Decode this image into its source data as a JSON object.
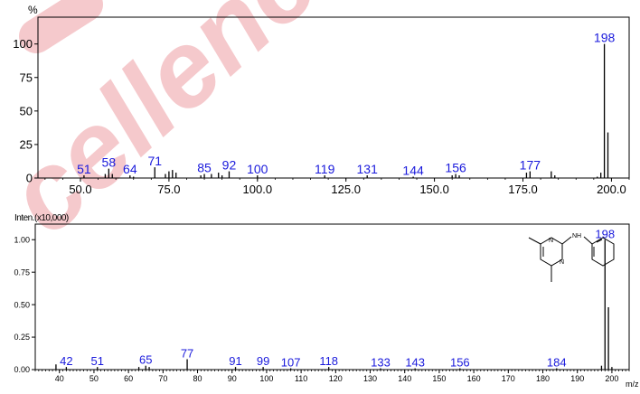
{
  "colors": {
    "axis": "#000000",
    "peak_label": "#1a1adc",
    "watermark": "#f5c9cc",
    "bar": "#000000"
  },
  "watermark_text": "cellence",
  "chart_data": [
    {
      "type": "bar",
      "title": "",
      "ylabel": "%",
      "xlabel": "",
      "xlim": [
        38,
        205
      ],
      "ylim": [
        0,
        120
      ],
      "xticks": [
        50,
        75,
        100,
        125,
        150,
        175,
        200
      ],
      "xtick_labels": [
        "50.0",
        "75.0",
        "100.0",
        "125.0",
        "150.0",
        "175.0",
        "200.0"
      ],
      "yticks": [
        0,
        25,
        50,
        75,
        100
      ],
      "ytick_labels": [
        "0",
        "25",
        "50",
        "75",
        "100"
      ],
      "grid": false,
      "peaks": [
        {
          "mz": 51,
          "intensity": 2,
          "label": "51"
        },
        {
          "mz": 57,
          "intensity": 3,
          "label": ""
        },
        {
          "mz": 58,
          "intensity": 7,
          "label": "58"
        },
        {
          "mz": 59,
          "intensity": 3,
          "label": ""
        },
        {
          "mz": 64,
          "intensity": 2,
          "label": "64"
        },
        {
          "mz": 65,
          "intensity": 1,
          "label": ""
        },
        {
          "mz": 71,
          "intensity": 8,
          "label": "71"
        },
        {
          "mz": 74,
          "intensity": 3,
          "label": ""
        },
        {
          "mz": 75,
          "intensity": 5,
          "label": ""
        },
        {
          "mz": 76,
          "intensity": 6,
          "label": ""
        },
        {
          "mz": 77,
          "intensity": 4,
          "label": ""
        },
        {
          "mz": 84,
          "intensity": 2,
          "label": ""
        },
        {
          "mz": 85,
          "intensity": 3,
          "label": "85"
        },
        {
          "mz": 87,
          "intensity": 3,
          "label": ""
        },
        {
          "mz": 89,
          "intensity": 4,
          "label": ""
        },
        {
          "mz": 90,
          "intensity": 2,
          "label": ""
        },
        {
          "mz": 92,
          "intensity": 5,
          "label": "92"
        },
        {
          "mz": 100,
          "intensity": 2,
          "label": "100"
        },
        {
          "mz": 119,
          "intensity": 2,
          "label": "119"
        },
        {
          "mz": 131,
          "intensity": 2,
          "label": "131"
        },
        {
          "mz": 144,
          "intensity": 1,
          "label": "144"
        },
        {
          "mz": 155,
          "intensity": 2,
          "label": ""
        },
        {
          "mz": 156,
          "intensity": 3,
          "label": "156"
        },
        {
          "mz": 157,
          "intensity": 2,
          "label": ""
        },
        {
          "mz": 176,
          "intensity": 4,
          "label": ""
        },
        {
          "mz": 177,
          "intensity": 5,
          "label": "177"
        },
        {
          "mz": 183,
          "intensity": 5,
          "label": ""
        },
        {
          "mz": 184,
          "intensity": 2,
          "label": ""
        },
        {
          "mz": 196,
          "intensity": 1,
          "label": ""
        },
        {
          "mz": 197,
          "intensity": 4,
          "label": ""
        },
        {
          "mz": 198,
          "intensity": 100,
          "label": "198"
        },
        {
          "mz": 199,
          "intensity": 34,
          "label": ""
        }
      ]
    },
    {
      "type": "bar",
      "title": "",
      "ylabel": "Inten.(x10,000)",
      "xlabel": "m/z",
      "xlim": [
        33,
        205
      ],
      "ylim": [
        0,
        1.12
      ],
      "xticks": [
        40,
        50,
        60,
        70,
        80,
        90,
        100,
        110,
        120,
        130,
        140,
        150,
        160,
        170,
        180,
        190,
        200
      ],
      "xtick_labels": [
        "40",
        "50",
        "60",
        "70",
        "80",
        "90",
        "100",
        "110",
        "120",
        "130",
        "140",
        "150",
        "160",
        "170",
        "180",
        "190",
        "200"
      ],
      "yticks": [
        0,
        0.25,
        0.5,
        0.75,
        1.0
      ],
      "ytick_labels": [
        "0.00",
        "0.25",
        "0.50",
        "0.75",
        "1.00"
      ],
      "grid": false,
      "peaks": [
        {
          "mz": 39,
          "intensity": 0.04,
          "label": ""
        },
        {
          "mz": 42,
          "intensity": 0.02,
          "label": "42"
        },
        {
          "mz": 51,
          "intensity": 0.02,
          "label": "51"
        },
        {
          "mz": 63,
          "intensity": 0.02,
          "label": ""
        },
        {
          "mz": 65,
          "intensity": 0.03,
          "label": "65"
        },
        {
          "mz": 66,
          "intensity": 0.02,
          "label": ""
        },
        {
          "mz": 77,
          "intensity": 0.08,
          "label": "77"
        },
        {
          "mz": 91,
          "intensity": 0.02,
          "label": "91"
        },
        {
          "mz": 99,
          "intensity": 0.02,
          "label": "99"
        },
        {
          "mz": 107,
          "intensity": 0.01,
          "label": "107"
        },
        {
          "mz": 118,
          "intensity": 0.02,
          "label": "118"
        },
        {
          "mz": 133,
          "intensity": 0.01,
          "label": "133"
        },
        {
          "mz": 143,
          "intensity": 0.01,
          "label": "143"
        },
        {
          "mz": 156,
          "intensity": 0.01,
          "label": "156"
        },
        {
          "mz": 184,
          "intensity": 0.01,
          "label": "184"
        },
        {
          "mz": 197,
          "intensity": 0.03,
          "label": ""
        },
        {
          "mz": 198,
          "intensity": 1.0,
          "label": "198"
        },
        {
          "mz": 199,
          "intensity": 0.48,
          "label": ""
        },
        {
          "mz": 200,
          "intensity": 0.02,
          "label": ""
        }
      ],
      "inset_structure": {
        "labels": [
          "N",
          "N",
          "NH"
        ],
        "description_icon": "pyrimidine-phenylamine-structure-icon"
      }
    }
  ]
}
